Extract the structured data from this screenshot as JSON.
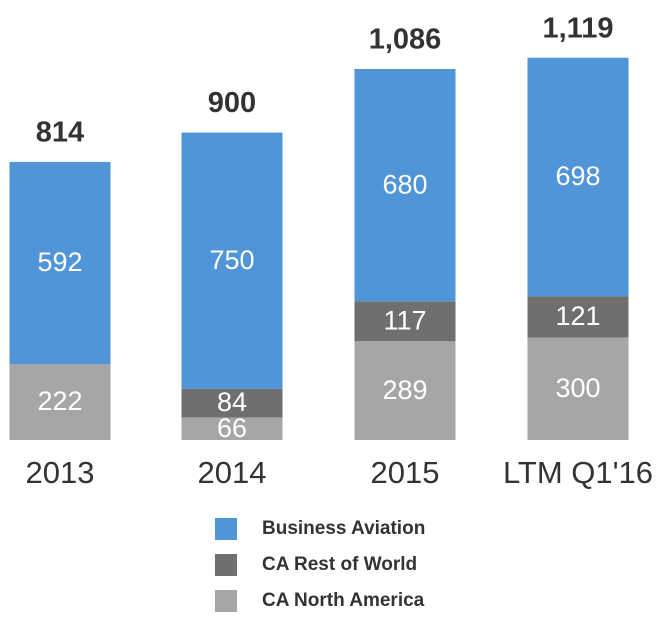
{
  "chart_data": {
    "type": "stacked_bar",
    "categories": [
      "2013",
      "2014",
      "2015",
      "LTM Q1'16"
    ],
    "series": [
      {
        "name": "CA North America",
        "color": "#a6a6a6",
        "values": [
          222,
          66,
          289,
          300
        ]
      },
      {
        "name": "CA Rest of World",
        "color": "#6f6f6f",
        "values": [
          null,
          84,
          117,
          121
        ]
      },
      {
        "name": "Business Aviation",
        "color": "#4f95d8",
        "values": [
          592,
          750,
          680,
          698
        ]
      }
    ],
    "totals": [
      814,
      900,
      1086,
      1119
    ],
    "total_labels": [
      "814",
      "900",
      "1,086",
      "1,119"
    ],
    "ylim": [
      0,
      1288
    ],
    "legend_order": [
      2,
      1,
      0
    ]
  }
}
